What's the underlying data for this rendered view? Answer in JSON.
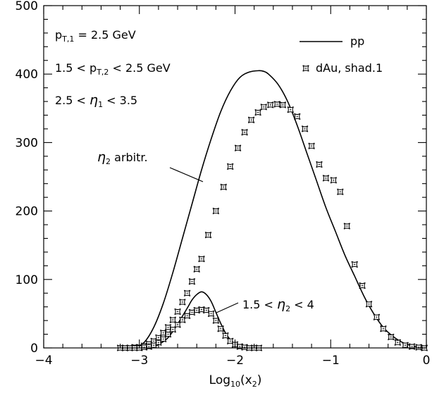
{
  "chart_data": {
    "type": "line",
    "title": "",
    "xlabel": "Log",
    "xlabel_sub": "10",
    "xlabel_arg": "(x",
    "xlabel_arg_sub": "2",
    "xlabel_close": ")",
    "ylabel": "",
    "xlim": [
      -4,
      0
    ],
    "ylim": [
      0,
      500
    ],
    "x_ticks": [
      -4,
      -3,
      -2,
      -1,
      0
    ],
    "x_tick_labels": [
      "−4",
      "−3",
      "−2",
      "−1",
      "0"
    ],
    "y_ticks": [
      0,
      100,
      200,
      300,
      400,
      500
    ],
    "y_tick_labels": [
      "0",
      "100",
      "200",
      "300",
      "400",
      "500"
    ],
    "legend": [
      {
        "label": "pp",
        "style": "line"
      },
      {
        "label": "dAu, shad.1",
        "style": "star-marker"
      }
    ],
    "legend_position": "top-right",
    "annotations": {
      "pt1": {
        "p": "p",
        "sub": "T,1",
        "rest": " = 2.5 GeV"
      },
      "pt2": {
        "pre": "1.5 < p",
        "sub": "T,2",
        "rest": " < 2.5 GeV"
      },
      "eta1": {
        "pre": "2.5 < ",
        "eta": "η",
        "sub": "1",
        "rest": " < 3.5"
      },
      "eta2_arb": {
        "eta": "η",
        "sub": "2",
        "rest": " arbitr."
      },
      "eta2_range": {
        "pre": "1.5 < ",
        "eta": "η",
        "sub": "2",
        "rest": " < 4"
      }
    },
    "series": [
      {
        "name": "pp, η2 arbitrary",
        "kind": "line",
        "x": [
          -3.05,
          -2.95,
          -2.85,
          -2.75,
          -2.65,
          -2.55,
          -2.45,
          -2.35,
          -2.25,
          -2.15,
          -2.05,
          -1.95,
          -1.85,
          -1.75,
          -1.7,
          -1.65,
          -1.55,
          -1.45,
          -1.35,
          -1.25,
          -1.15,
          -1.05,
          -0.95,
          -0.85,
          -0.75,
          -0.65,
          -0.55,
          -0.45,
          -0.35,
          -0.25,
          -0.15,
          -0.05,
          0.0
        ],
        "y": [
          0,
          8,
          30,
          65,
          110,
          160,
          210,
          260,
          305,
          345,
          375,
          395,
          403,
          405,
          404,
          400,
          385,
          360,
          325,
          285,
          245,
          205,
          170,
          135,
          105,
          75,
          50,
          30,
          17,
          8,
          3,
          1,
          0
        ]
      },
      {
        "name": "pp, 1.5 < η2 < 4",
        "kind": "line",
        "x": [
          -2.9,
          -2.8,
          -2.7,
          -2.6,
          -2.5,
          -2.45,
          -2.4,
          -2.35,
          -2.3,
          -2.25,
          -2.2,
          -2.15,
          -2.1,
          -2.05,
          -2.0,
          -1.95,
          -1.9,
          -1.85
        ],
        "y": [
          0,
          5,
          15,
          35,
          58,
          70,
          78,
          82,
          78,
          68,
          52,
          36,
          22,
          12,
          5,
          2,
          1,
          0
        ]
      },
      {
        "name": "dAu shad.1, η2 arbitrary",
        "kind": "marker",
        "x": [
          -3.2,
          -3.15,
          -3.1,
          -3.05,
          -3.0,
          -2.95,
          -2.9,
          -2.85,
          -2.8,
          -2.75,
          -2.7,
          -2.65,
          -2.6,
          -2.55,
          -2.5,
          -2.45,
          -2.4,
          -2.35,
          -2.28,
          -2.2,
          -2.12,
          -2.05,
          -1.97,
          -1.9,
          -1.83,
          -1.76,
          -1.7,
          -1.63,
          -1.56,
          -1.5,
          -1.42,
          -1.35,
          -1.27,
          -1.2,
          -1.12,
          -1.05,
          -0.97,
          -0.9,
          -0.83,
          -0.75,
          -0.67,
          -0.6,
          -0.52,
          -0.45,
          -0.37,
          -0.3,
          -0.22,
          -0.15,
          -0.08,
          -0.02
        ],
        "y": [
          0,
          0,
          0,
          1,
          1,
          3,
          6,
          10,
          15,
          22,
          30,
          41,
          53,
          67,
          80,
          97,
          115,
          130,
          165,
          200,
          235,
          265,
          292,
          315,
          333,
          344,
          352,
          355,
          356,
          355,
          348,
          338,
          320,
          295,
          268,
          248,
          245,
          228,
          178,
          122,
          91,
          64,
          45,
          28,
          16,
          8,
          4,
          2,
          1,
          0
        ]
      },
      {
        "name": "dAu shad.1, 1.5 < η2 < 4",
        "kind": "marker",
        "x": [
          -3.15,
          -3.1,
          -3.05,
          -3.0,
          -2.95,
          -2.9,
          -2.85,
          -2.8,
          -2.75,
          -2.7,
          -2.65,
          -2.6,
          -2.55,
          -2.5,
          -2.45,
          -2.4,
          -2.35,
          -2.3,
          -2.25,
          -2.2,
          -2.15,
          -2.1,
          -2.05,
          -2.0,
          -1.95,
          -1.9,
          -1.85,
          -1.8,
          -1.75
        ],
        "y": [
          0,
          0,
          0,
          0,
          1,
          2,
          4,
          8,
          13,
          20,
          27,
          34,
          41,
          47,
          52,
          55,
          56,
          55,
          50,
          40,
          28,
          18,
          10,
          5,
          2,
          1,
          0,
          0,
          0
        ]
      }
    ]
  }
}
